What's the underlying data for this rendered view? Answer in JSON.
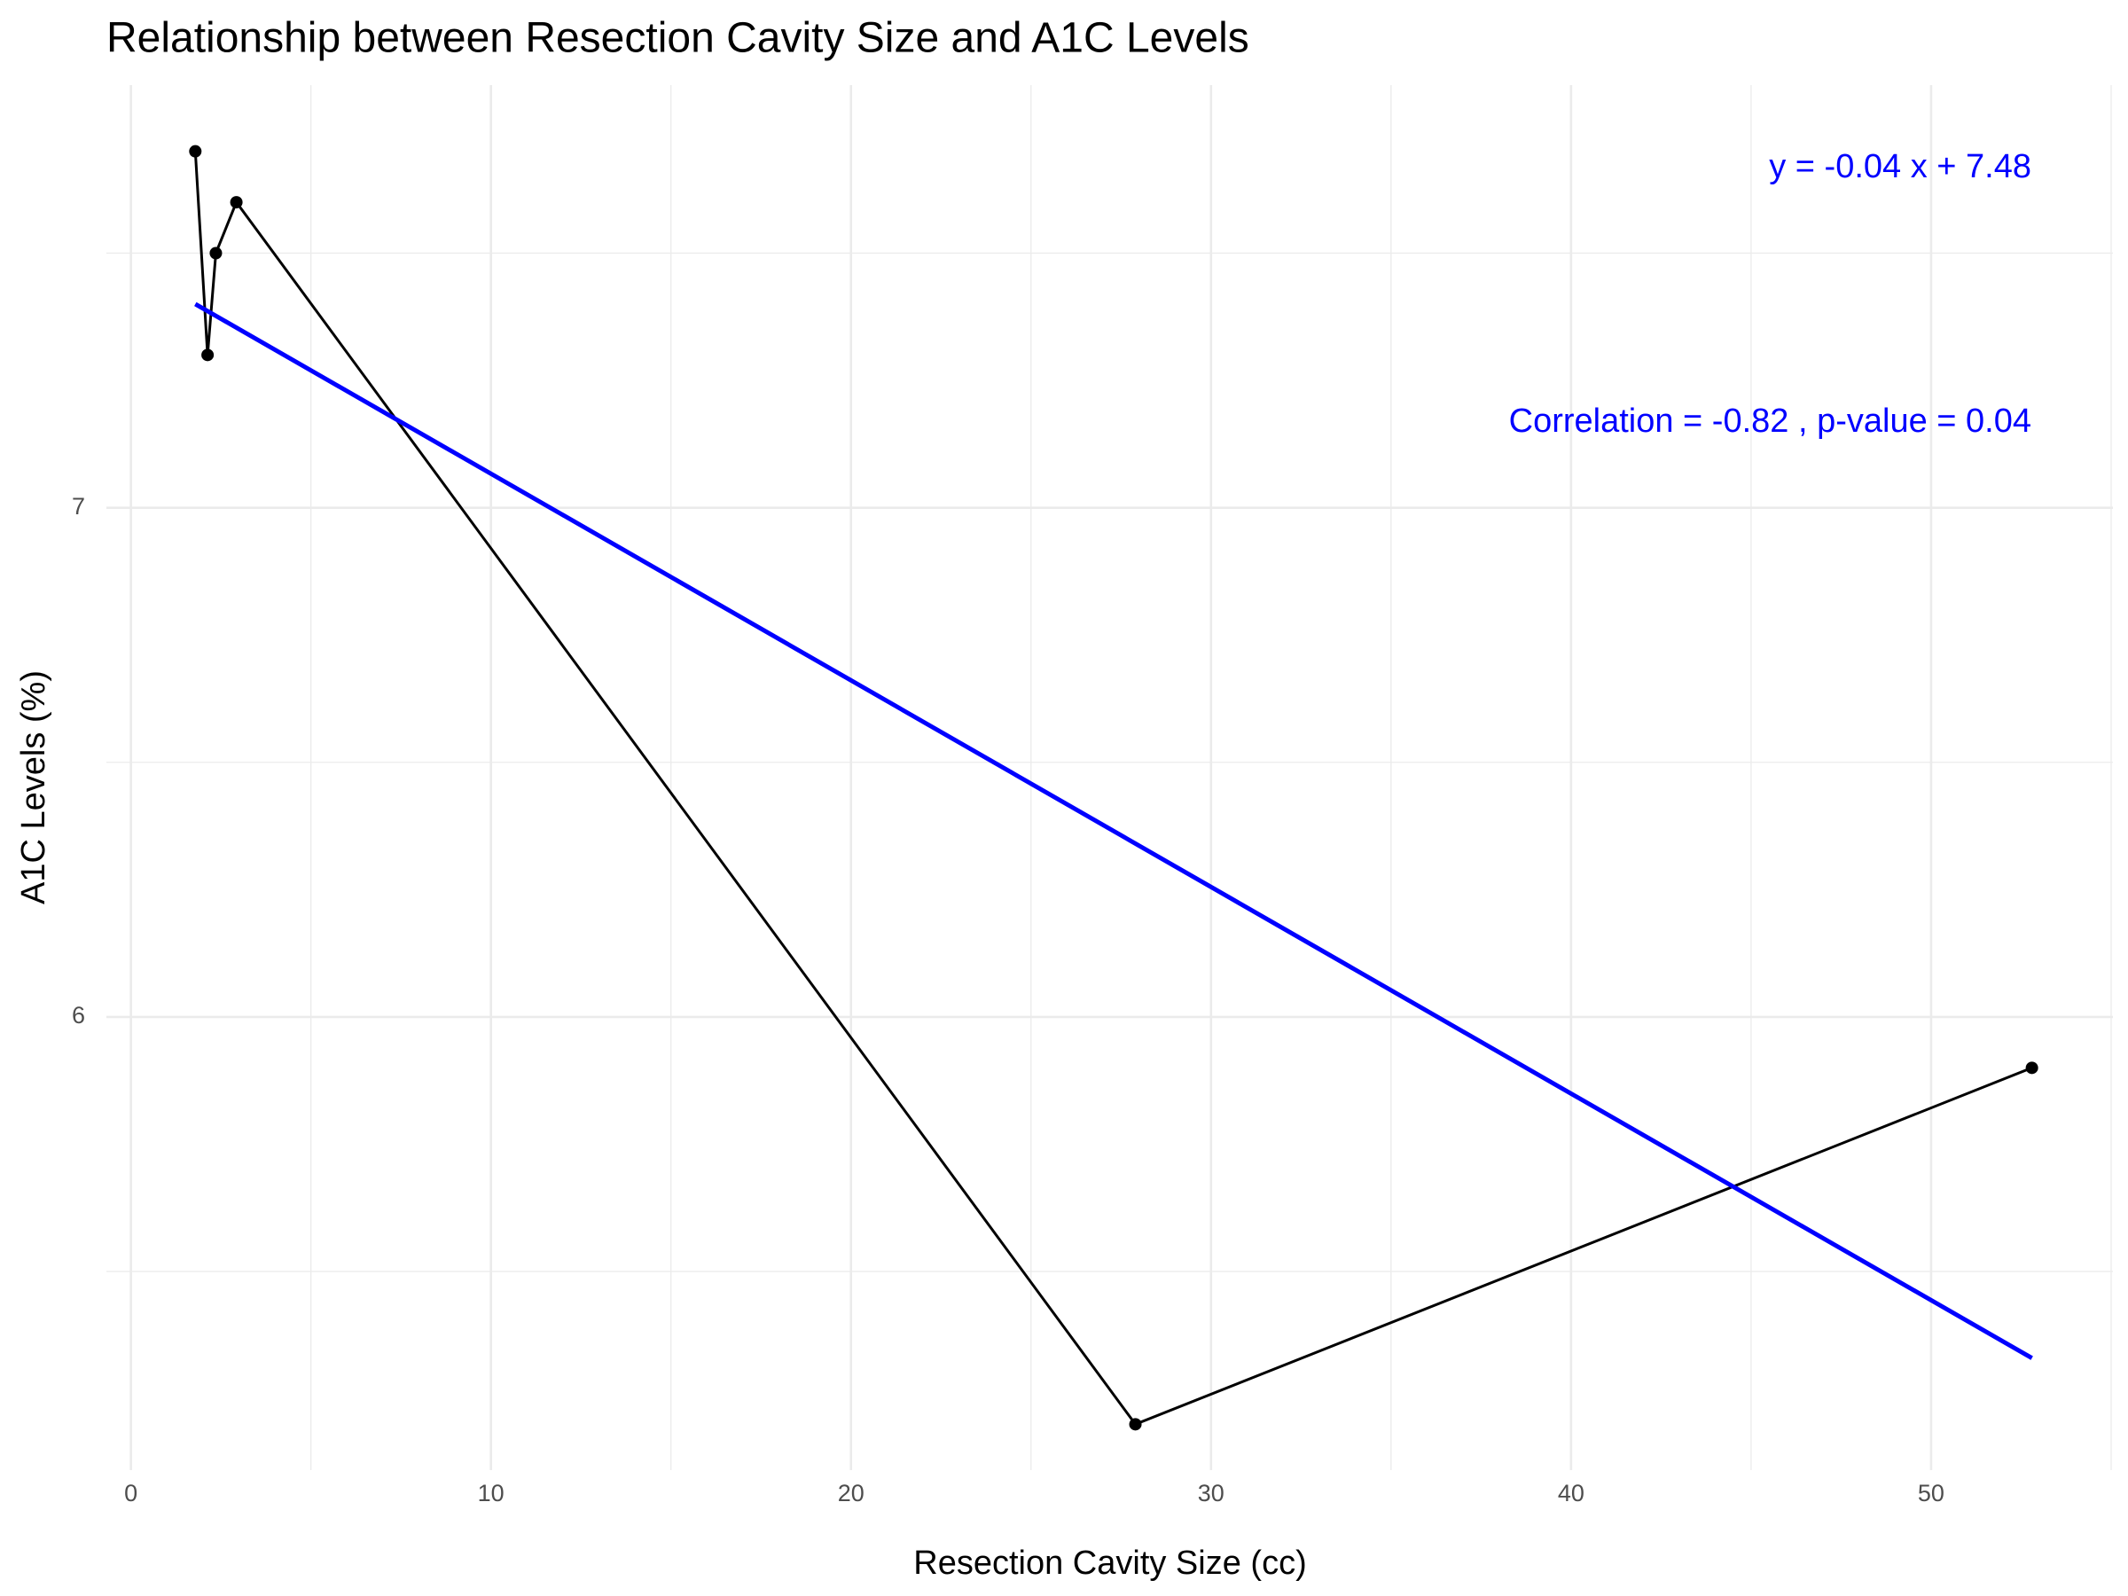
{
  "chart_data": {
    "type": "scatter",
    "title": "Relationship between Resection Cavity Size and A1C Levels",
    "x_label": "Resection Cavity Size (cc)",
    "y_label": "A1C Levels (%)",
    "series": [
      {
        "name": "A1C",
        "color": "#000000",
        "x": [
          1.79,
          2.13,
          2.36,
          2.93,
          27.9,
          52.8
        ],
        "values": [
          7.7,
          7.3,
          7.5,
          7.6,
          5.2,
          5.9
        ]
      },
      {
        "name": "Regression",
        "color": "#0000ff",
        "x": [
          1.79,
          52.8
        ],
        "values": [
          7.4,
          5.33
        ]
      }
    ],
    "annotations": [
      "y = -0.04 x + 7.48",
      "Correlation = -0.82 , p-value = 0.04"
    ],
    "annotation_color": "#0000ff",
    "xlim": [
      -0.68,
      55.05
    ],
    "ylim": [
      5.11,
      7.83
    ],
    "xticks": [
      0,
      10,
      20,
      30,
      40,
      50
    ],
    "yticks": [
      6,
      7
    ],
    "xminor": [
      5,
      15,
      25,
      35,
      45,
      55
    ],
    "yminor": [
      5.5,
      6.5,
      7.5
    ],
    "grid": true
  }
}
